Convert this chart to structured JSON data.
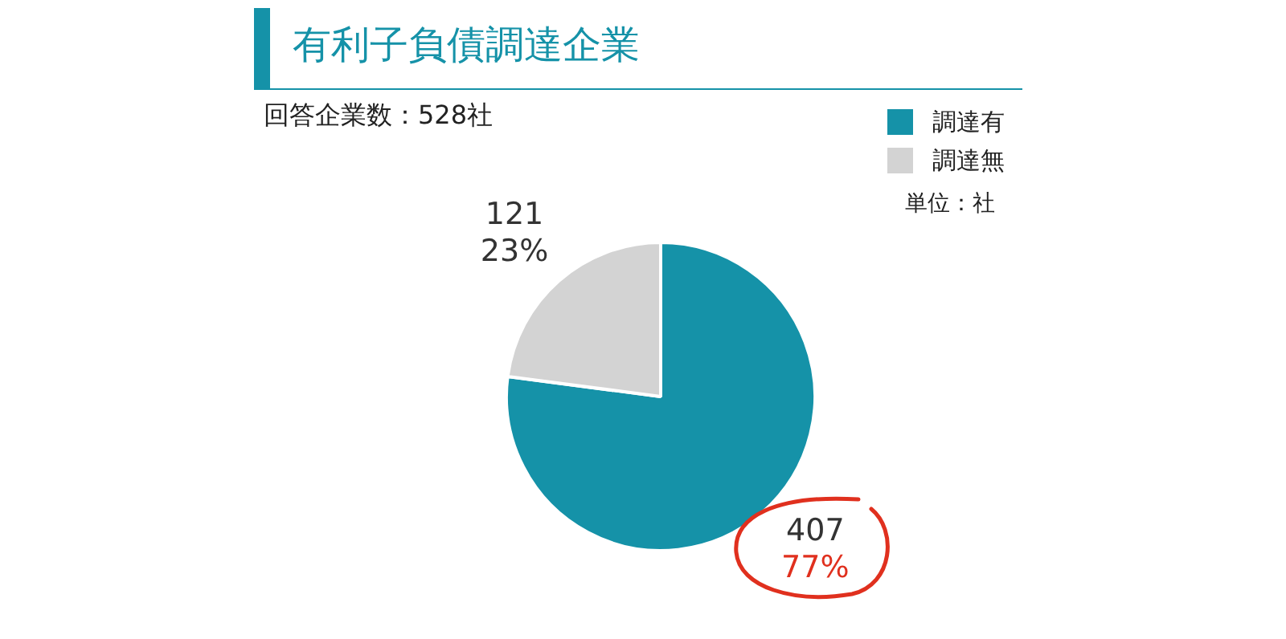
{
  "chart_data": {
    "type": "pie",
    "title": "有利子負債調達企業",
    "subtitle": "回答企業数：528社",
    "categories": [
      "調達有",
      "調達無"
    ],
    "values": [
      407,
      121
    ],
    "colors": [
      "#1592a8",
      "#d3d3d3"
    ],
    "value_labels": [
      "407\n77%",
      "121\n23%"
    ],
    "legend": "top right",
    "annotations": [
      "単位：社"
    ]
  }
}
